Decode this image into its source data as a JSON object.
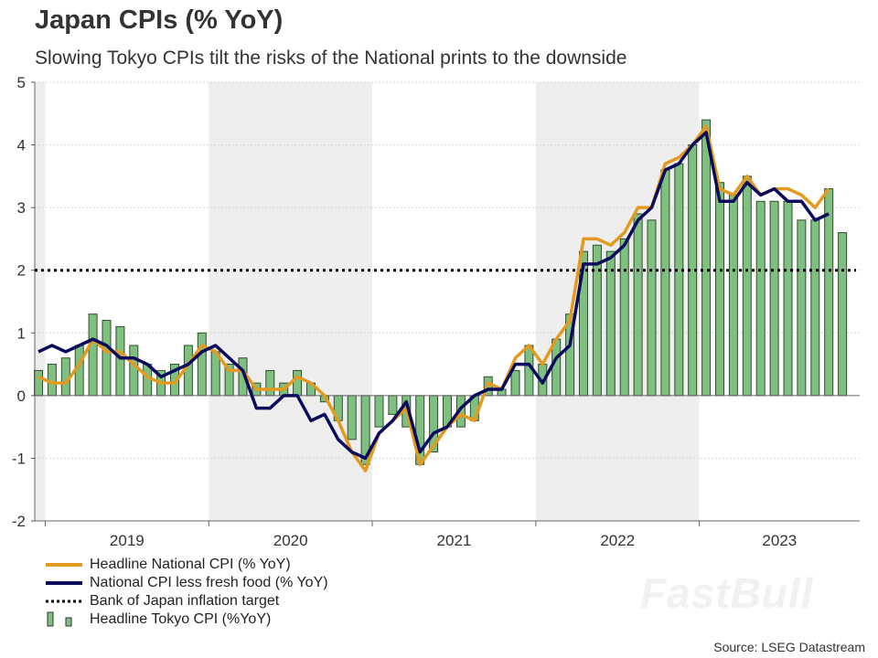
{
  "header": {
    "title": "Japan CPIs (% YoY)",
    "subtitle": "Slowing Tokyo CPIs tilt the risks of the National prints to the downside"
  },
  "source": "Source: LSEG Datastream",
  "watermark": "FastBull",
  "chart_data": {
    "type": "bar+line",
    "title": "Japan CPIs (% YoY)",
    "xlabel": "",
    "ylabel": "",
    "ylim": [
      -2,
      5
    ],
    "y_ticks": [
      "5",
      "4",
      "3",
      "2",
      "1",
      "0",
      "-1",
      "-2"
    ],
    "x_tick_labels": [
      "2019",
      "2020",
      "2021",
      "2022",
      "2023"
    ],
    "grid": true,
    "shaded_years": [
      "2020",
      "2022"
    ],
    "legend_position": "bottom-left",
    "start_month": "2018-12",
    "series": [
      {
        "name": "Headline National CPI (% YoY)",
        "kind": "line",
        "color": "#E39A1E",
        "values": [
          0.3,
          0.2,
          0.2,
          0.5,
          0.9,
          0.7,
          0.7,
          0.5,
          0.3,
          0.2,
          0.2,
          0.5,
          0.8,
          0.7,
          0.4,
          0.4,
          0.1,
          0.1,
          0.1,
          0.3,
          0.2,
          0.0,
          -0.4,
          -0.9,
          -1.2,
          -0.6,
          -0.4,
          -0.2,
          -1.1,
          -0.8,
          -0.5,
          -0.3,
          -0.4,
          0.2,
          0.1,
          0.6,
          0.8,
          0.5,
          0.9,
          1.2,
          2.5,
          2.5,
          2.4,
          2.6,
          3.0,
          3.0,
          3.7,
          3.8,
          4.0,
          4.3,
          3.3,
          3.2,
          3.5,
          3.2,
          3.3,
          3.3,
          3.2,
          3.0,
          3.3
        ]
      },
      {
        "name": "National CPI less fresh food (% YoY)",
        "kind": "line",
        "color": "#0B0B5E",
        "values": [
          0.7,
          0.8,
          0.7,
          0.8,
          0.9,
          0.8,
          0.6,
          0.6,
          0.5,
          0.3,
          0.4,
          0.5,
          0.7,
          0.8,
          0.6,
          0.4,
          -0.2,
          -0.2,
          0.0,
          0.0,
          -0.4,
          -0.3,
          -0.7,
          -0.9,
          -1.0,
          -0.6,
          -0.4,
          -0.1,
          -0.9,
          -0.6,
          -0.5,
          -0.2,
          0.0,
          0.1,
          0.1,
          0.5,
          0.5,
          0.2,
          0.6,
          0.8,
          2.1,
          2.1,
          2.2,
          2.4,
          2.8,
          3.0,
          3.6,
          3.7,
          4.0,
          4.2,
          3.1,
          3.1,
          3.4,
          3.2,
          3.3,
          3.1,
          3.1,
          2.8,
          2.9
        ]
      },
      {
        "name": "Bank of Japan inflation target",
        "kind": "hline",
        "color": "#000000",
        "value": 2
      },
      {
        "name": "Headline Tokyo CPI (%YoY)",
        "kind": "bar",
        "color": "#7FBF7F",
        "values": [
          0.4,
          0.5,
          0.6,
          0.8,
          1.3,
          1.2,
          1.1,
          0.8,
          0.5,
          0.4,
          0.5,
          0.8,
          1.0,
          0.7,
          0.5,
          0.6,
          0.2,
          0.4,
          0.2,
          0.4,
          0.2,
          -0.1,
          -0.4,
          -0.7,
          -1.1,
          -0.5,
          -0.3,
          -0.5,
          -1.1,
          -0.9,
          -0.5,
          -0.5,
          -0.4,
          0.3,
          0.1,
          0.4,
          0.8,
          0.5,
          0.9,
          1.3,
          2.3,
          2.4,
          2.3,
          2.5,
          2.9,
          2.8,
          3.6,
          3.7,
          4.0,
          4.4,
          3.4,
          3.2,
          3.5,
          3.1,
          3.1,
          3.1,
          2.8,
          2.8,
          3.3,
          2.6
        ]
      }
    ]
  }
}
